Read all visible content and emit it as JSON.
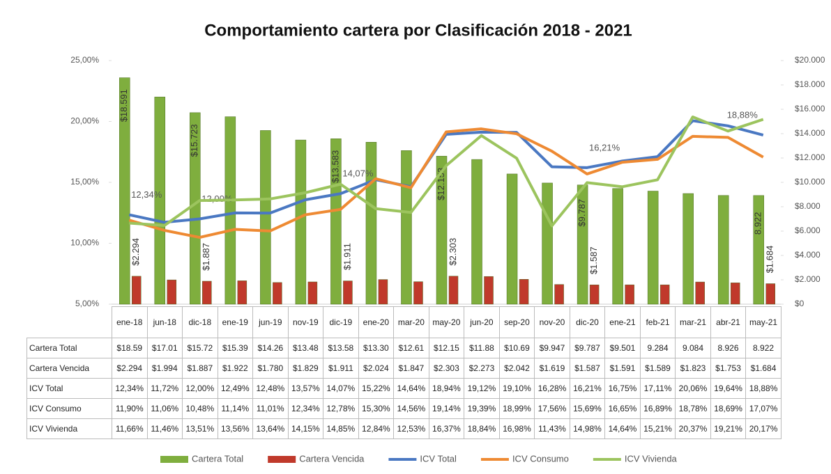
{
  "chart_data": {
    "type": "combo",
    "title": "Comportamiento cartera por Clasificación 2018 - 2021",
    "categories": [
      "ene-18",
      "jun-18",
      "dic-18",
      "ene-19",
      "jun-19",
      "nov-19",
      "dic-19",
      "ene-20",
      "mar-20",
      "may-20",
      "jun-20",
      "sep-20",
      "nov-20",
      "dic-20",
      "ene-21",
      "feb-21",
      "mar-21",
      "abr-21",
      "may-21"
    ],
    "ylim": [
      5,
      25
    ],
    "yticks": [
      {
        "value": 5,
        "label": "5,00%"
      },
      {
        "value": 10,
        "label": "10,00%"
      },
      {
        "value": 15,
        "label": "15,00%"
      },
      {
        "value": 20,
        "label": "20,00%"
      },
      {
        "value": 25,
        "label": "25,00%"
      }
    ],
    "y2lim": [
      0,
      20000
    ],
    "y2ticks": [
      {
        "value": 0,
        "label": "$0"
      },
      {
        "value": 2000,
        "label": "$2.000"
      },
      {
        "value": 4000,
        "label": "$4.000"
      },
      {
        "value": 6000,
        "label": "$6.000"
      },
      {
        "value": 8000,
        "label": "$8.000"
      },
      {
        "value": 10000,
        "label": "$10.000"
      },
      {
        "value": 12000,
        "label": "$12.000"
      },
      {
        "value": 14000,
        "label": "$14.000"
      },
      {
        "value": 16000,
        "label": "$16.000"
      },
      {
        "value": 18000,
        "label": "$18.000"
      },
      {
        "value": 20000,
        "label": "$20.000"
      }
    ],
    "series": [
      {
        "name": "Cartera Total",
        "type": "bar",
        "axis": "y2",
        "color": "#7fae3e",
        "values": [
          18591,
          17010,
          15723,
          15390,
          14260,
          13480,
          13583,
          13300,
          12610,
          12153,
          11880,
          10690,
          9947,
          9787,
          9501,
          9284,
          9084,
          8926,
          8922
        ],
        "value_labels": [
          "$18.59",
          "$17.01",
          "$15.72",
          "$15.39",
          "$14.26",
          "$13.48",
          "$13.58",
          "$13.30",
          "$12.61",
          "$12.15",
          "$11.88",
          "$10.69",
          "$9.947",
          "$9.787",
          "$9.501",
          "9.284",
          "9.084",
          "8.926",
          "8.922"
        ],
        "data_labels": [
          "$18.591",
          null,
          "$15.723",
          null,
          null,
          null,
          "$13.583",
          null,
          null,
          "$12.153",
          null,
          null,
          null,
          "$9.787",
          null,
          null,
          null,
          null,
          "8.922"
        ]
      },
      {
        "name": "Cartera Vencida",
        "type": "bar",
        "axis": "y2",
        "color": "#c0392b",
        "values": [
          2294,
          1994,
          1887,
          1922,
          1780,
          1829,
          1911,
          2024,
          1847,
          2303,
          2273,
          2042,
          1619,
          1587,
          1591,
          1589,
          1823,
          1753,
          1684
        ],
        "value_labels": [
          "$2.294",
          "$1.994",
          "$1.887",
          "$1.922",
          "$1.780",
          "$1.829",
          "$1.911",
          "$2.024",
          "$1.847",
          "$2.303",
          "$2.273",
          "$2.042",
          "$1.619",
          "$1.587",
          "$1.591",
          "$1.589",
          "$1.823",
          "$1.753",
          "$1.684"
        ],
        "data_labels": [
          "$2.294",
          null,
          "$1.887",
          null,
          null,
          null,
          "$1.911",
          null,
          null,
          "$2.303",
          null,
          null,
          null,
          "$1.587",
          null,
          null,
          null,
          null,
          "$1.684"
        ]
      },
      {
        "name": "ICV Total",
        "type": "line",
        "color": "#4a78c2",
        "values": [
          12.34,
          11.72,
          12,
          12.49,
          12.48,
          13.57,
          14.07,
          15.22,
          14.64,
          18.94,
          19.12,
          19.1,
          16.28,
          16.21,
          16.75,
          17.11,
          20.06,
          19.64,
          18.88
        ],
        "value_labels": [
          "12,34%",
          "11,72%",
          "12,00%",
          "12,49%",
          "12,48%",
          "13,57%",
          "14,07%",
          "15,22%",
          "14,64%",
          "18,94%",
          "19,12%",
          "19,10%",
          "16,28%",
          "16,21%",
          "16,75%",
          "17,11%",
          "20,06%",
          "19,64%",
          "18,88%"
        ],
        "data_labels": [
          "12,34%",
          null,
          "12,00%",
          null,
          null,
          null,
          "14,07%",
          null,
          null,
          null,
          null,
          null,
          null,
          "16,21%",
          null,
          null,
          null,
          null,
          "18,88%"
        ]
      },
      {
        "name": "ICV Consumo",
        "type": "line",
        "color": "#ee8a33",
        "values": [
          11.9,
          11.06,
          10.48,
          11.14,
          11.01,
          12.34,
          12.78,
          15.3,
          14.56,
          19.14,
          19.39,
          18.99,
          17.56,
          15.69,
          16.65,
          16.89,
          18.78,
          18.69,
          17.07
        ],
        "value_labels": [
          "11,90%",
          "11,06%",
          "10,48%",
          "11,14%",
          "11,01%",
          "12,34%",
          "12,78%",
          "15,30%",
          "14,56%",
          "19,14%",
          "19,39%",
          "18,99%",
          "17,56%",
          "15,69%",
          "16,65%",
          "16,89%",
          "18,78%",
          "18,69%",
          "17,07%"
        ]
      },
      {
        "name": "ICV Vivienda",
        "type": "line",
        "color": "#9cc45e",
        "values": [
          11.66,
          11.46,
          13.51,
          13.56,
          13.64,
          14.15,
          14.85,
          12.84,
          12.53,
          16.37,
          18.84,
          16.98,
          11.43,
          14.98,
          14.64,
          15.21,
          20.37,
          19.21,
          20.17
        ],
        "value_labels": [
          "11,66%",
          "11,46%",
          "13,51%",
          "13,56%",
          "13,64%",
          "14,15%",
          "14,85%",
          "12,84%",
          "12,53%",
          "16,37%",
          "18,84%",
          "16,98%",
          "11,43%",
          "14,98%",
          "14,64%",
          "15,21%",
          "20,37%",
          "19,21%",
          "20,17%"
        ]
      }
    ]
  }
}
